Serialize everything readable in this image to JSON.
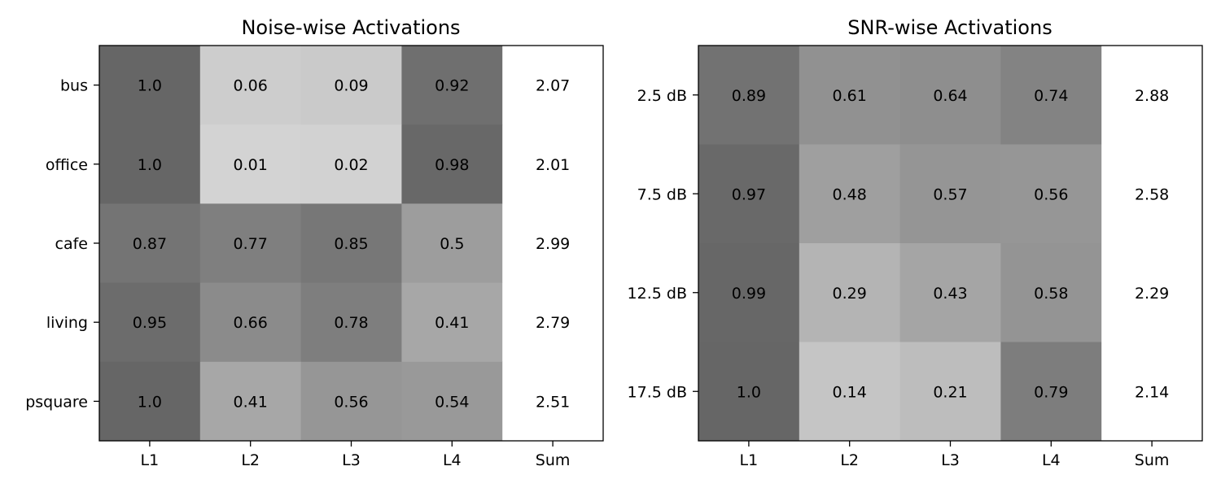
{
  "chart_data": [
    {
      "type": "heatmap",
      "title": "Noise-wise Activations",
      "xlabel": "",
      "ylabel": "",
      "x_categories": [
        "L1",
        "L2",
        "L3",
        "L4",
        "Sum"
      ],
      "y_categories": [
        "bus",
        "office",
        "cafe",
        "living",
        "psquare"
      ],
      "values": [
        [
          "1.0",
          "0.06",
          "0.09",
          "0.92",
          "2.07"
        ],
        [
          "1.0",
          "0.01",
          "0.02",
          "0.98",
          "2.01"
        ],
        [
          "0.87",
          "0.77",
          "0.85",
          "0.5",
          "2.99"
        ],
        [
          "0.95",
          "0.66",
          "0.78",
          "0.41",
          "2.79"
        ],
        [
          "1.0",
          "0.41",
          "0.56",
          "0.54",
          "2.51"
        ]
      ],
      "colormap": "gray_r",
      "value_range": [
        0,
        1
      ],
      "sum_column_color": "#ffffff"
    },
    {
      "type": "heatmap",
      "title": "SNR-wise Activations",
      "xlabel": "",
      "ylabel": "",
      "x_categories": [
        "L1",
        "L2",
        "L3",
        "L4",
        "Sum"
      ],
      "y_categories": [
        "2.5 dB",
        "7.5 dB",
        "12.5 dB",
        "17.5 dB"
      ],
      "values": [
        [
          "0.89",
          "0.61",
          "0.64",
          "0.74",
          "2.88"
        ],
        [
          "0.97",
          "0.48",
          "0.57",
          "0.56",
          "2.58"
        ],
        [
          "0.99",
          "0.29",
          "0.43",
          "0.58",
          "2.29"
        ],
        [
          "1.0",
          "0.14",
          "0.21",
          "0.79",
          "2.14"
        ]
      ],
      "colormap": "gray_r",
      "value_range": [
        0,
        1
      ],
      "sum_column_color": "#ffffff"
    }
  ]
}
